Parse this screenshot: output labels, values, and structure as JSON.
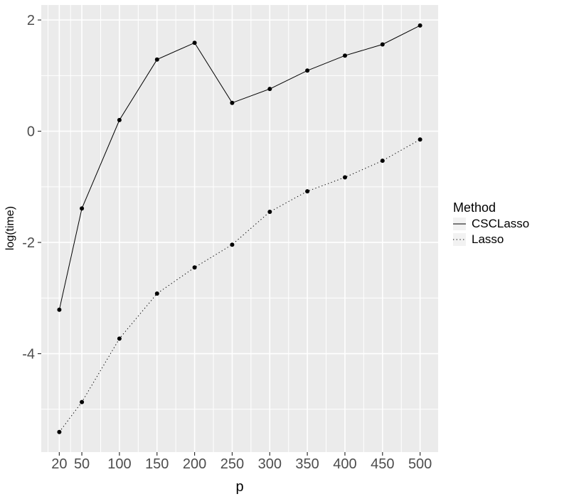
{
  "chart_data": {
    "type": "line",
    "title": "",
    "xlabel": "p",
    "ylabel": "log(time)",
    "x": [
      20,
      50,
      100,
      150,
      200,
      250,
      300,
      350,
      400,
      450,
      500
    ],
    "series": [
      {
        "name": "CSCLasso",
        "linetype": "solid",
        "values": [
          -3.21,
          -1.39,
          0.2,
          1.29,
          1.59,
          0.51,
          0.76,
          1.09,
          1.36,
          1.56,
          1.9
        ]
      },
      {
        "name": "Lasso",
        "linetype": "dotted",
        "values": [
          -5.41,
          -4.87,
          -3.73,
          -2.92,
          -2.45,
          -2.04,
          -1.45,
          -1.08,
          -0.83,
          -0.53,
          -0.15
        ]
      }
    ],
    "x_ticks": [
      20,
      50,
      100,
      150,
      200,
      250,
      300,
      350,
      400,
      450,
      500
    ],
    "y_ticks": [
      2,
      0,
      -2,
      -4
    ],
    "xlim": [
      -4,
      524
    ],
    "ylim": [
      -5.77,
      2.27
    ],
    "grid": "major+minor",
    "legend_position": "right",
    "point_shape": "filled-circle",
    "colors": {
      "panel_bg": "#EBEBEB",
      "grid": "#FFFFFF",
      "line": "#000000",
      "point": "#000000",
      "tick_label": "#4D4D4D",
      "tick_mark": "#333333",
      "legend_key_bg": "#F2F2F2"
    }
  },
  "legend": {
    "title": "Method",
    "items": [
      {
        "label": "CSCLasso",
        "linetype": "solid"
      },
      {
        "label": "Lasso",
        "linetype": "dotted"
      }
    ]
  }
}
